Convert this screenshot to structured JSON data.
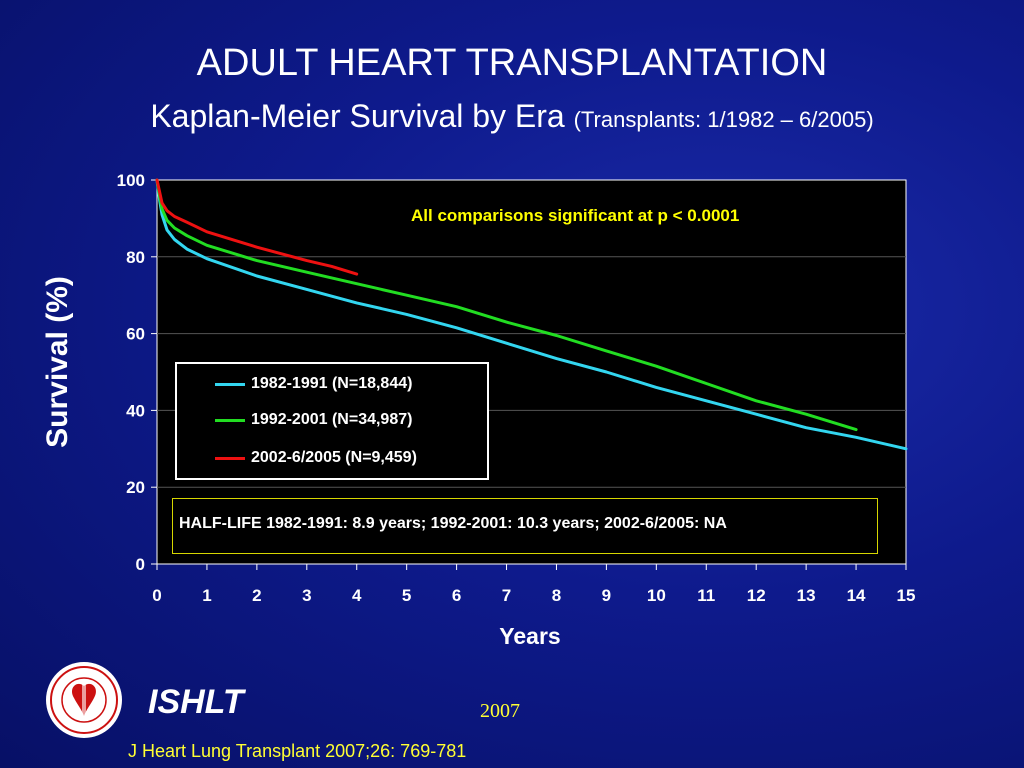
{
  "title": "ADULT HEART TRANSPLANTATION",
  "subtitle_main": "Kaplan-Meier Survival by Era",
  "subtitle_range": "(Transplants: 1/1982 – 6/2005)",
  "significance_note": "All comparisons significant at p < 0.0001",
  "half_life_note": "HALF-LIFE 1982-1991: 8.9 years; 1992-2001: 10.3 years; 2002-6/2005: NA",
  "organization": "ISHLT",
  "logo_text": "INTERNATIONAL SOCIETY FOR HEART & LUNG TRANSPLANTATION",
  "year": "2007",
  "citation": "J Heart Lung Transplant 2007;26: 769-781",
  "colors": {
    "background": "#0e1a8c",
    "plot_background": "#000000",
    "note_color": "#ffff00",
    "citation_color": "#ffff33"
  },
  "chart_data": {
    "type": "line",
    "xlabel": "Years",
    "ylabel": "Survival (%)",
    "xlim": [
      0,
      15
    ],
    "ylim": [
      0,
      100
    ],
    "xticks": [
      0,
      1,
      2,
      3,
      4,
      5,
      6,
      7,
      8,
      9,
      10,
      11,
      12,
      13,
      14,
      15
    ],
    "yticks": [
      0,
      20,
      40,
      60,
      80,
      100
    ],
    "grid": "horizontal",
    "legend_position": "center-left",
    "series": [
      {
        "name": "1982-1991 (N=18,844)",
        "color": "#33d6f0",
        "x": [
          0,
          0.05,
          0.1,
          0.2,
          0.35,
          0.6,
          1,
          2,
          3,
          4,
          5,
          6,
          7,
          8,
          9,
          10,
          11,
          12,
          13,
          14,
          15
        ],
        "y": [
          100,
          95,
          91,
          87,
          84.5,
          82,
          79.5,
          75,
          71.5,
          68,
          65,
          61.5,
          57.5,
          53.5,
          50,
          46,
          42.5,
          39,
          35.5,
          33,
          30
        ]
      },
      {
        "name": "1992-2001 (N=34,987)",
        "color": "#22dd22",
        "x": [
          0,
          0.05,
          0.1,
          0.2,
          0.35,
          0.6,
          1,
          2,
          3,
          4,
          5,
          6,
          7,
          8,
          9,
          10,
          11,
          12,
          13,
          14
        ],
        "y": [
          100,
          96,
          92.5,
          89.5,
          87.5,
          85.5,
          83,
          79,
          76,
          73,
          70,
          67,
          63,
          59.5,
          55.5,
          51.5,
          47,
          42.5,
          39,
          35
        ]
      },
      {
        "name": "2002-6/2005 (N=9,459)",
        "color": "#ee1111",
        "x": [
          0,
          0.05,
          0.1,
          0.2,
          0.35,
          0.6,
          1,
          2,
          3,
          3.5,
          4
        ],
        "y": [
          100,
          97,
          94,
          92,
          90.5,
          89,
          86.5,
          82.5,
          79,
          77.5,
          75.5
        ]
      }
    ]
  }
}
